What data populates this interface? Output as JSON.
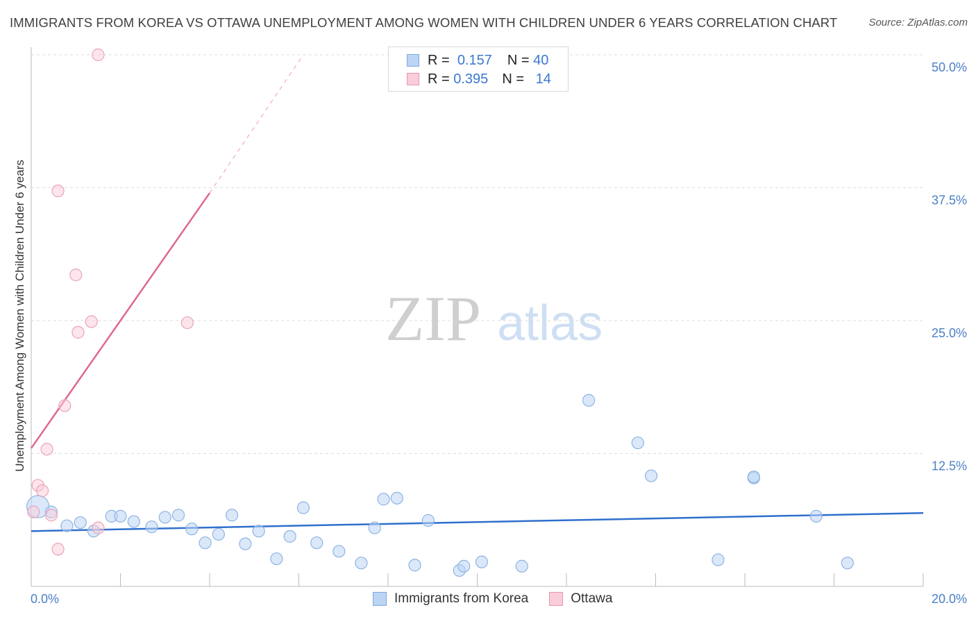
{
  "title": "IMMIGRANTS FROM KOREA VS OTTAWA UNEMPLOYMENT AMONG WOMEN WITH CHILDREN UNDER 6 YEARS CORRELATION CHART",
  "source": "Source: ZipAtlas.com",
  "watermark": {
    "zip": "ZIP",
    "atlas": "atlas"
  },
  "legend": {
    "korea": {
      "r_label": "R =",
      "r_value": "0.157",
      "n_label": "N =",
      "n_value": "40"
    },
    "ottawa": {
      "r_label": "R =",
      "r_value": "0.395",
      "n_label": "N =",
      "n_value": "14"
    }
  },
  "colors": {
    "korea": "#a8c8f0",
    "korea_line": "#2f6fcd",
    "ottawa": "#f6b6c8",
    "ottawa_line": "#e06790",
    "axis_text": "#4a7fc8"
  },
  "chart_data": {
    "type": "scatter",
    "title": "IMMIGRANTS FROM KOREA VS OTTAWA UNEMPLOYMENT AMONG WOMEN WITH CHILDREN UNDER 6 YEARS CORRELATION CHART",
    "xlabel": "",
    "ylabel": "Unemployment Among Women with Children Under 6 years",
    "xlim": [
      0,
      20
    ],
    "ylim": [
      0,
      50
    ],
    "x_tick_labels": [
      "0.0%",
      "20.0%"
    ],
    "y_ticks": [
      12.5,
      25.0,
      37.5,
      50.0
    ],
    "y_tick_labels": [
      "12.5%",
      "25.0%",
      "37.5%",
      "50.0%"
    ],
    "grid": true,
    "legend_position": "top-center",
    "series": [
      {
        "name": "Immigrants from Korea",
        "color": "#a8c8f0",
        "points": [
          [
            0.15,
            7.5
          ],
          [
            0.45,
            7.0
          ],
          [
            0.8,
            5.7
          ],
          [
            1.1,
            6.0
          ],
          [
            1.4,
            5.2
          ],
          [
            1.8,
            6.6
          ],
          [
            2.0,
            6.6
          ],
          [
            2.3,
            6.1
          ],
          [
            2.7,
            5.6
          ],
          [
            3.0,
            6.5
          ],
          [
            3.3,
            6.7
          ],
          [
            3.6,
            5.4
          ],
          [
            3.9,
            4.1
          ],
          [
            4.2,
            4.9
          ],
          [
            4.5,
            6.7
          ],
          [
            4.8,
            4.0
          ],
          [
            5.1,
            5.2
          ],
          [
            5.5,
            2.6
          ],
          [
            5.8,
            4.7
          ],
          [
            6.1,
            7.4
          ],
          [
            6.4,
            4.1
          ],
          [
            6.9,
            3.3
          ],
          [
            7.4,
            2.2
          ],
          [
            7.7,
            5.5
          ],
          [
            7.9,
            8.2
          ],
          [
            8.2,
            8.3
          ],
          [
            8.6,
            2.0
          ],
          [
            8.9,
            6.2
          ],
          [
            9.6,
            1.5
          ],
          [
            9.7,
            1.9
          ],
          [
            10.1,
            2.3
          ],
          [
            11.0,
            1.9
          ],
          [
            12.5,
            17.5
          ],
          [
            13.6,
            13.5
          ],
          [
            13.9,
            10.4
          ],
          [
            16.2,
            10.2
          ],
          [
            16.2,
            10.3
          ],
          [
            15.4,
            2.5
          ],
          [
            17.6,
            6.6
          ],
          [
            18.3,
            2.2
          ]
        ]
      },
      {
        "name": "Ottawa",
        "color": "#f6b6c8",
        "points": [
          [
            0.05,
            7.0
          ],
          [
            0.15,
            9.5
          ],
          [
            0.25,
            9.0
          ],
          [
            0.35,
            12.9
          ],
          [
            0.45,
            6.7
          ],
          [
            0.6,
            37.2
          ],
          [
            0.6,
            3.5
          ],
          [
            0.75,
            17.0
          ],
          [
            1.0,
            29.3
          ],
          [
            1.05,
            23.9
          ],
          [
            1.35,
            24.9
          ],
          [
            1.5,
            5.5
          ],
          [
            1.5,
            50.0
          ],
          [
            3.5,
            24.8
          ]
        ]
      }
    ],
    "trend_lines": [
      {
        "name": "Immigrants from Korea",
        "x": [
          0,
          20
        ],
        "y": [
          5.2,
          6.9
        ]
      },
      {
        "name": "Ottawa",
        "x": [
          0,
          4.0
        ],
        "y": [
          13.0,
          37.0
        ],
        "dashed_extension_x": [
          4.0,
          6.1
        ],
        "dashed_extension_y": [
          37.0,
          50.0
        ]
      }
    ]
  },
  "bottom_legend": {
    "korea": "Immigrants from Korea",
    "ottawa": "Ottawa"
  }
}
